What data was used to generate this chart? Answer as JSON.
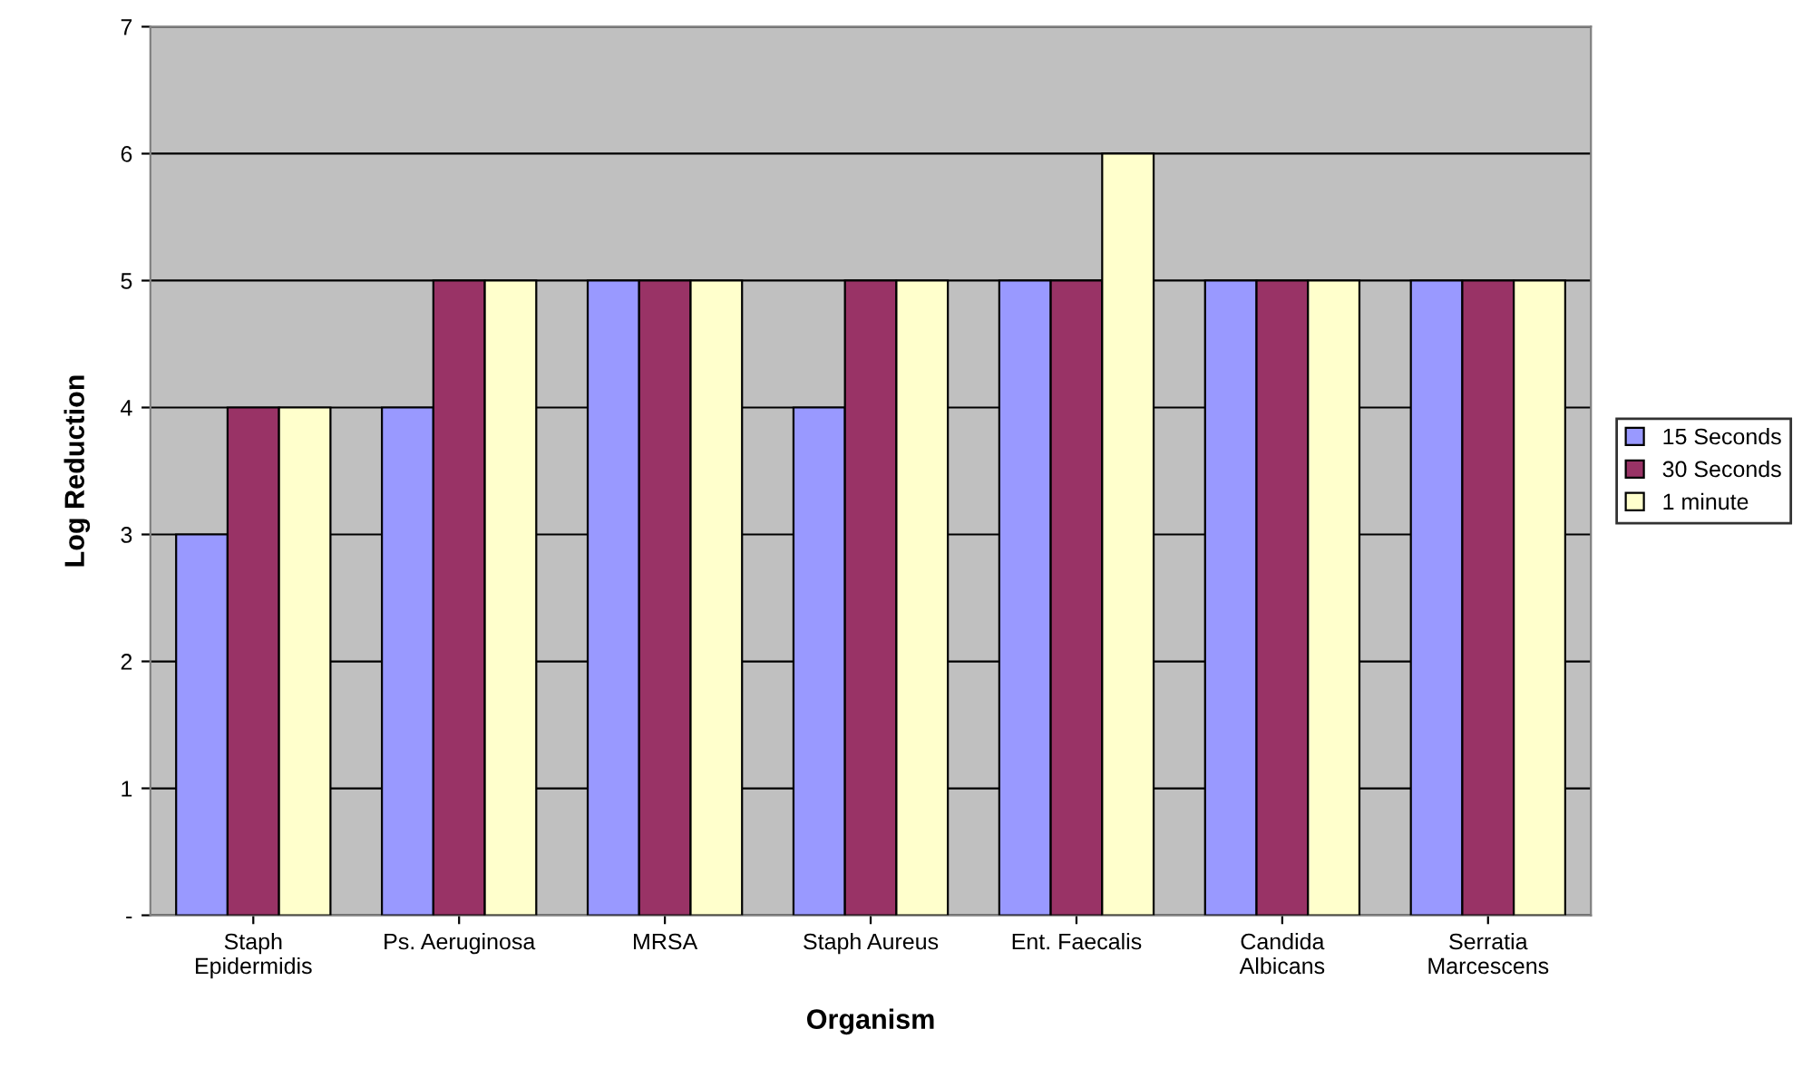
{
  "chart_data": {
    "type": "bar",
    "xlabel": "Organism",
    "ylabel": "Log Reduction",
    "categories": [
      "Staph\nEpidermidis",
      "Ps. Aeruginosa",
      "MRSA",
      "Staph Aureus",
      "Ent. Faecalis",
      "Candida\nAlbicans",
      "Serratia\nMarcescens"
    ],
    "series": [
      {
        "name": "15 Seconds",
        "color": "#9999ff",
        "values": [
          3,
          4,
          5,
          4,
          5,
          5,
          5
        ]
      },
      {
        "name": "30 Seconds",
        "color": "#993366",
        "values": [
          4,
          5,
          5,
          5,
          5,
          5,
          5
        ]
      },
      {
        "name": "1 minute",
        "color": "#ffffcc",
        "values": [
          4,
          5,
          5,
          5,
          6,
          5,
          5
        ]
      }
    ],
    "ylim": [
      0,
      7
    ],
    "yticks": [
      {
        "value": 0,
        "label": "-"
      },
      1,
      2,
      3,
      4,
      5,
      6,
      7
    ],
    "grid": "y",
    "legend": "right"
  }
}
